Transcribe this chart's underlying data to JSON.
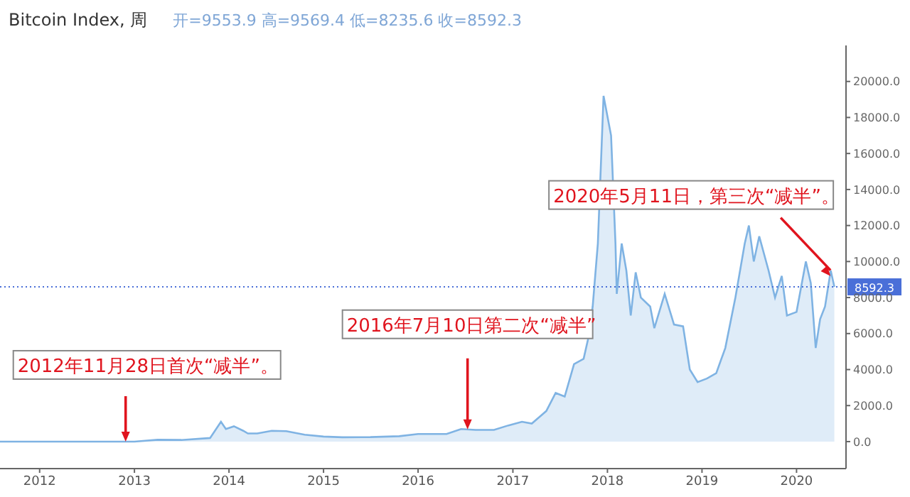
{
  "chart_data": {
    "type": "area",
    "title": "Bitcoin Index, 周",
    "subtitle": "开=9553.9  高=9569.4  低=8235.6  收=8592.3",
    "x": [
      "2011-08-01",
      "2012-07-01",
      "2013-01-01",
      "2013-04-01",
      "2013-07-01",
      "2013-10-20",
      "2013-12-01",
      "2013-12-20",
      "2014-01-20",
      "2014-02-25",
      "2014-03-15",
      "2014-04-20",
      "2014-06-15",
      "2014-08-10",
      "2014-10-20",
      "2015-01-01",
      "2015-03-15",
      "2015-07-01",
      "2015-10-20",
      "2016-01-01",
      "2016-04-20",
      "2016-06-15",
      "2016-08-10",
      "2016-10-20",
      "2016-12-15",
      "2017-02-05",
      "2017-03-15",
      "2017-05-10",
      "2017-06-15",
      "2017-07-20",
      "2017-08-25",
      "2017-10-01",
      "2017-10-20",
      "2017-11-05",
      "2017-11-25",
      "2017-12-17",
      "2018-01-15",
      "2018-02-01",
      "2018-02-06",
      "2018-02-25",
      "2018-03-15",
      "2018-04-01",
      "2018-04-20",
      "2018-05-10",
      "2018-06-15",
      "2018-07-01",
      "2018-08-10",
      "2018-09-15",
      "2018-10-20",
      "2018-11-15",
      "2018-12-15",
      "2019-01-20",
      "2019-02-25",
      "2019-04-01",
      "2019-05-10",
      "2019-06-15",
      "2019-07-01",
      "2019-07-20",
      "2019-08-10",
      "2019-09-15",
      "2019-10-10",
      "2019-11-05",
      "2019-11-25",
      "2020-01-01",
      "2020-02-06",
      "2020-02-25",
      "2020-03-15",
      "2020-04-01",
      "2020-04-20",
      "2020-05-12",
      "2020-05-26"
    ],
    "series": [
      {
        "color": "#7fb3e3",
        "values": [
          0,
          0,
          0,
          100,
          90,
          200,
          1100,
          700,
          850,
          600,
          450,
          450,
          600,
          580,
          380,
          280,
          240,
          250,
          300,
          420,
          420,
          700,
          650,
          650,
          900,
          1100,
          1000,
          1700,
          2700,
          2500,
          4300,
          4600,
          5800,
          7500,
          11000,
          19200,
          17000,
          11000,
          8200,
          11000,
          9500,
          7000,
          9400,
          8000,
          7500,
          6300,
          8200,
          6500,
          6400,
          4000,
          3300,
          3500,
          3800,
          5200,
          8000,
          11000,
          12000,
          10000,
          11400,
          9500,
          8000,
          9200,
          7000,
          7200,
          10000,
          8800,
          5200,
          6800,
          7500,
          9500,
          8592.3
        ]
      }
    ],
    "xlim": [
      "2011-08-01",
      "2020-07-10"
    ],
    "xticks": [
      "2012",
      "2013",
      "2014",
      "2015",
      "2016",
      "2017",
      "2018",
      "2019",
      "2020"
    ],
    "ylim": [
      -1500,
      22000
    ],
    "yticks": [
      {
        "value": 0,
        "label": "0.0"
      },
      {
        "value": 2000,
        "label": "2000.0"
      },
      {
        "value": 4000,
        "label": "4000.0"
      },
      {
        "value": 6000,
        "label": "6000.0"
      },
      {
        "value": 8000,
        "label": "8000.0"
      },
      {
        "value": 10000,
        "label": "10000.0"
      },
      {
        "value": 12000,
        "label": "12000.0"
      },
      {
        "value": 14000,
        "label": "14000.0"
      },
      {
        "value": 16000,
        "label": "16000.0"
      },
      {
        "value": 18000,
        "label": "18000.0"
      },
      {
        "value": 20000,
        "label": "20000.0"
      }
    ],
    "ref_lines": [
      {
        "axis": "y",
        "value": 8592.3,
        "label": "8592.3",
        "color": "#4a6fd8",
        "line_style": "dotted"
      }
    ],
    "annotations": [
      {
        "text": "2012年11月28日首次“减半”。",
        "x": "2012-11-28",
        "y": 0
      },
      {
        "text": "2016年7月10日第二次“减半”",
        "x": "2016-07-10",
        "y": 680
      },
      {
        "text": "2020年5月11日，第三次“减半”。",
        "x": "2020-05-11",
        "y": 9200
      }
    ],
    "grid": false,
    "legend": false,
    "marker": "none",
    "line_style": "solid"
  }
}
